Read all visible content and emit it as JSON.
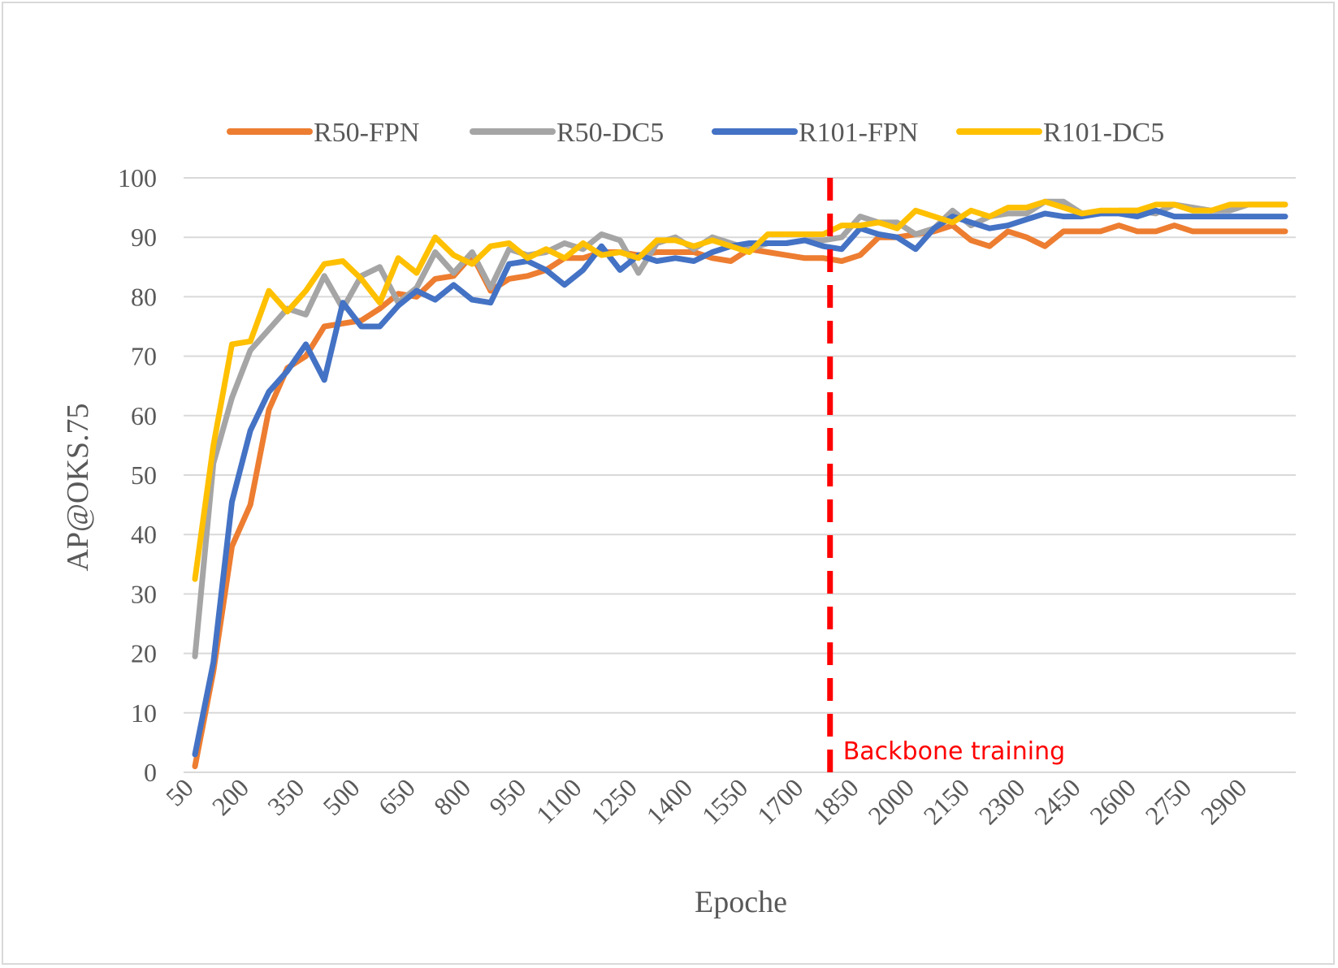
{
  "chart_data": {
    "type": "line",
    "title": "",
    "xlabel": "Epoche",
    "ylabel": "AP@OKS.75",
    "ylim": [
      0,
      100
    ],
    "yticks": [
      0,
      10,
      20,
      30,
      40,
      50,
      60,
      70,
      80,
      90,
      100
    ],
    "grid": "horizontal",
    "legend": "top",
    "x": [
      50,
      100,
      150,
      200,
      250,
      300,
      350,
      400,
      450,
      500,
      550,
      600,
      650,
      700,
      750,
      800,
      850,
      900,
      950,
      1000,
      1050,
      1100,
      1150,
      1200,
      1250,
      1300,
      1350,
      1400,
      1450,
      1500,
      1550,
      1600,
      1650,
      1700,
      1750,
      1800,
      1850,
      1900,
      1950,
      2000,
      2050,
      2100,
      2150,
      2200,
      2250,
      2300,
      2350,
      2400,
      2450,
      2500,
      2550,
      2600,
      2650,
      2700,
      2750,
      2800,
      2850,
      2900,
      2950,
      3000
    ],
    "xtick_labels": [
      "50",
      "200",
      "350",
      "500",
      "650",
      "800",
      "950",
      "1100",
      "1250",
      "1400",
      "1550",
      "1700",
      "1850",
      "2000",
      "2150",
      "2300",
      "2450",
      "2600",
      "2750",
      "2900"
    ],
    "series": [
      {
        "name": "R50-FPN",
        "color": "#ed7d31",
        "values": [
          1,
          17,
          38,
          45,
          61,
          68,
          70,
          75,
          75.5,
          76,
          78,
          80.5,
          80,
          83,
          83.5,
          87,
          81,
          83,
          83.5,
          84.5,
          86.5,
          86.5,
          87.5,
          87.5,
          87,
          87.5,
          87.5,
          87.5,
          86.5,
          86,
          88,
          87.5,
          87,
          86.5,
          86.5,
          86,
          87,
          90,
          90,
          90.5,
          91,
          92,
          89.5,
          88.5,
          91,
          90,
          88.5,
          91,
          91,
          91,
          92,
          91,
          91,
          92,
          91,
          91,
          91,
          91,
          91,
          91
        ]
      },
      {
        "name": "R50-DC5",
        "color": "#a5a5a5",
        "values": [
          19.5,
          52,
          63,
          71,
          74.5,
          78,
          77,
          83.5,
          78,
          83.5,
          85,
          79,
          81.5,
          87.5,
          84,
          87.5,
          81.5,
          88,
          87,
          87.5,
          89,
          88,
          90.5,
          89.5,
          84,
          89,
          90,
          88,
          90,
          89,
          88,
          89,
          89,
          89.5,
          89.5,
          90,
          93.5,
          92.5,
          92.5,
          90.5,
          91.5,
          94.5,
          92,
          93.5,
          94,
          94,
          96,
          96,
          94,
          94,
          94.5,
          94.5,
          94,
          95.5,
          95,
          94.5,
          94.5,
          95.5,
          95.5,
          95.5
        ]
      },
      {
        "name": "R101-FPN",
        "color": "#4472c4",
        "values": [
          3,
          18.5,
          45.5,
          57.5,
          64,
          67.5,
          72,
          66,
          79,
          75,
          75,
          78.5,
          81,
          79.5,
          82,
          79.5,
          79,
          85.5,
          86,
          84.5,
          82,
          84.5,
          88.5,
          84.5,
          87,
          86,
          86.5,
          86,
          87.5,
          88.5,
          89,
          89,
          89,
          89.5,
          88.5,
          88,
          91.5,
          90.5,
          90,
          88,
          91.5,
          93.5,
          92.5,
          91.5,
          92,
          93,
          94,
          93.5,
          93.5,
          94,
          94,
          93.5,
          94.5,
          93.5,
          93.5,
          93.5,
          93.5,
          93.5,
          93.5,
          93.5
        ]
      },
      {
        "name": "R101-DC5",
        "color": "#ffc000",
        "values": [
          32.5,
          55,
          72,
          72.5,
          81,
          77.5,
          81,
          85.5,
          86,
          83,
          79,
          86.5,
          84,
          90,
          87,
          85.5,
          88.5,
          89,
          86.5,
          88,
          86.5,
          89,
          87,
          87.5,
          86.5,
          89.5,
          89.5,
          88.5,
          89.5,
          88.5,
          87.5,
          90.5,
          90.5,
          90.5,
          90.5,
          92,
          92,
          92.5,
          91.5,
          94.5,
          93.5,
          92.5,
          94.5,
          93.5,
          95,
          95,
          96,
          95,
          94,
          94.5,
          94.5,
          94.5,
          95.5,
          95.5,
          94.5,
          94.5,
          95.5,
          95.5,
          95.5,
          95.5
        ]
      }
    ],
    "annotations": [
      {
        "text": "Backbone training",
        "x": 1775,
        "color": "#ff0000",
        "style": "dashed-vertical-line"
      }
    ]
  }
}
